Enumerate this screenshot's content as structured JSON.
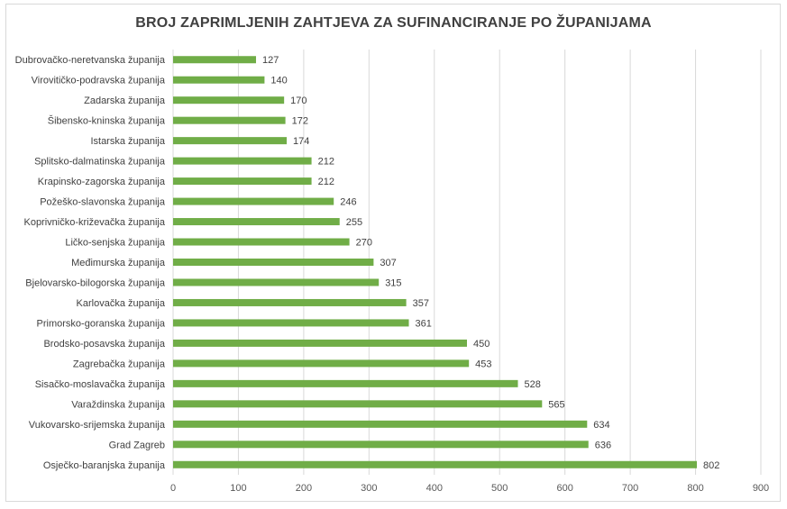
{
  "chart_data": {
    "type": "bar",
    "orientation": "horizontal",
    "title": "BROJ ZAPRIMLJENIH ZAHTJEVA ZA SUFINANCIRANJE PO ŽUPANIJAMA",
    "categories": [
      "Dubrovačko-neretvanska županija",
      "Virovitičko-podravska županija",
      "Zadarska županija",
      "Šibensko-kninska županija",
      "Istarska županija",
      "Splitsko-dalmatinska županija",
      "Krapinsko-zagorska županija",
      "Požeško-slavonska županija",
      "Koprivničko-križevačka županija",
      "Ličko-senjska županija",
      "Međimurska županija",
      "Bjelovarsko-bilogorska županija",
      "Karlovačka županija",
      "Primorsko-goranska županija",
      "Brodsko-posavska županija",
      "Zagrebačka županija",
      "Sisačko-moslavačka županija",
      "Varaždinska županija",
      "Vukovarsko-srijemska županija",
      "Grad Zagreb",
      "Osječko-baranjska županija"
    ],
    "values": [
      127,
      140,
      170,
      172,
      174,
      212,
      212,
      246,
      255,
      270,
      307,
      315,
      357,
      361,
      450,
      453,
      528,
      565,
      634,
      636,
      802
    ],
    "xlim": [
      0,
      900
    ],
    "xticks": [
      "0",
      "100",
      "200",
      "300",
      "400",
      "500",
      "600",
      "700",
      "800",
      "900"
    ],
    "grid": true,
    "bar_color": "#70ad47"
  }
}
